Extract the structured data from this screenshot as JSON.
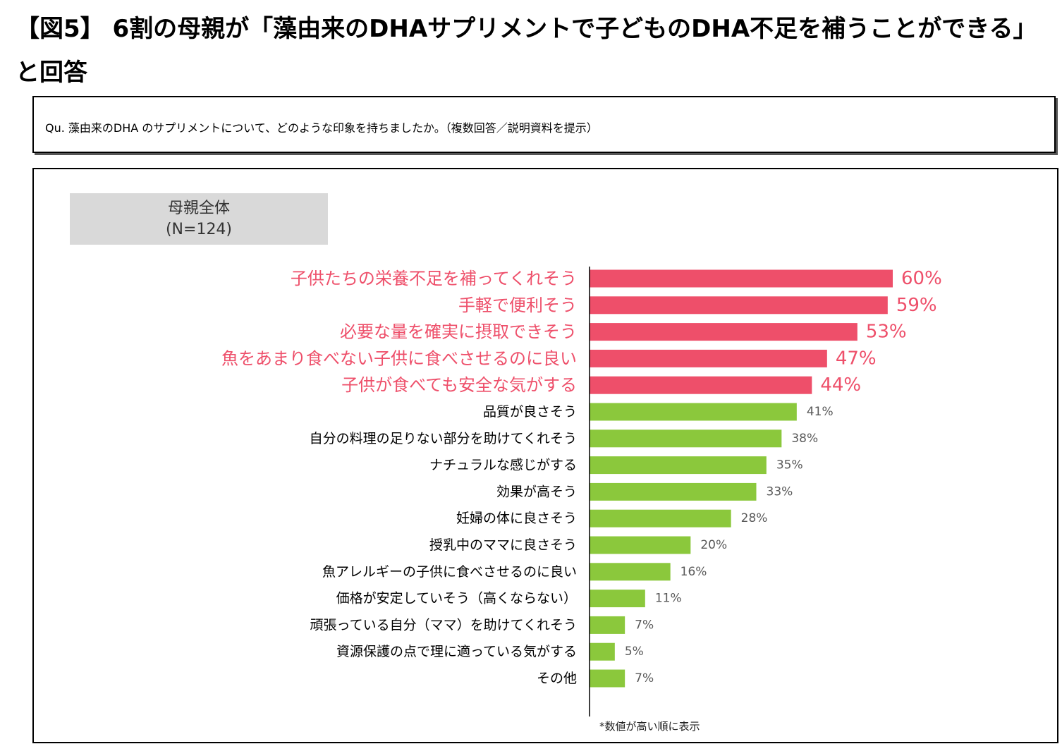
{
  "title": "【図5】 6割の母親が「藻由来のDHAサプリメントで子どものDHA不足を補うことができる」と回答",
  "question": "Qu. 藻由来のDHA のサプリメントについて、どのような印象を持ちましたか。（複数回答／説明資料を提示）",
  "group": {
    "name": "母親全体",
    "n": "(N=124)"
  },
  "footnote": "*数値が高い順に表示",
  "colors": {
    "highlight": "#ee4f6a",
    "normal": "#8bc83c",
    "normal_text": "#595959"
  },
  "chart_data": {
    "type": "bar",
    "orientation": "horizontal",
    "categories": [
      "子供たちの栄養不足を補ってくれそう",
      "手軽で便利そう",
      "必要な量を確実に摂取できそう",
      "魚をあまり食べない子供に食べさせるのに良い",
      "子供が食べても安全な気がする",
      "品質が良さそう",
      "自分の料理の足りない部分を助けてくれそう",
      "ナチュラルな感じがする",
      "効果が高そう",
      "妊婦の体に良さそう",
      "授乳中のママに良さそう",
      "魚アレルギーの子供に食べさせるのに良い",
      "価格が安定していそう（高くならない）",
      "頑張っている自分（ママ）を助けてくれそう",
      "資源保護の点で理に適っている気がする",
      "その他"
    ],
    "values": [
      60,
      59,
      53,
      47,
      44,
      41,
      38,
      35,
      33,
      28,
      20,
      16,
      11,
      7,
      5,
      7
    ],
    "value_labels": [
      "60%",
      "59%",
      "53%",
      "47%",
      "44%",
      "41%",
      "38%",
      "35%",
      "33%",
      "28%",
      "20%",
      "16%",
      "11%",
      "7%",
      "5%",
      "7%"
    ],
    "highlighted_count": 5,
    "xlim": [
      0,
      100
    ],
    "unit": "%",
    "grid": false
  }
}
